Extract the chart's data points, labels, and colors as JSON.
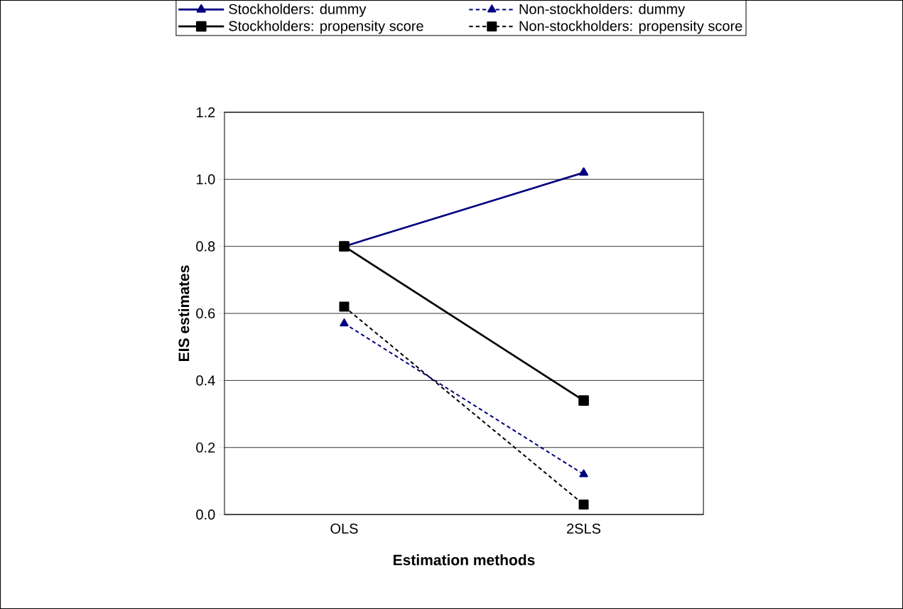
{
  "chart_data": {
    "type": "line",
    "xlabel": "Estimation methods",
    "ylabel": "EIS estimates",
    "categories": [
      "OLS",
      "2SLS"
    ],
    "series": [
      {
        "name": "Stockholders: dummy",
        "color": "#000080",
        "values": [
          0.8,
          1.02
        ],
        "marker": "triangle",
        "line_style": "solid"
      },
      {
        "name": "Non-stockholders: dummy",
        "color": "#000080",
        "values": [
          0.57,
          0.12
        ],
        "marker": "triangle",
        "line_style": "dashed"
      },
      {
        "name": "Stockholders: propensity score",
        "color": "#000000",
        "values": [
          0.8,
          0.34
        ],
        "marker": "square",
        "line_style": "solid"
      },
      {
        "name": "Non-stockholders: propensity score",
        "color": "#000000",
        "values": [
          0.62,
          0.03
        ],
        "marker": "square",
        "line_style": "dashed"
      }
    ],
    "ylim": [
      0,
      1.2
    ],
    "yticks": [
      {
        "value": 0,
        "label": "0.0"
      },
      {
        "value": 0.2,
        "label": "0.2"
      },
      {
        "value": 0.4,
        "label": "0.4"
      },
      {
        "value": 0.6,
        "label": "0.6"
      },
      {
        "value": 0.8,
        "label": "0.8"
      },
      {
        "value": 1.0,
        "label": "1.0"
      },
      {
        "value": 1.2,
        "label": "1.2"
      }
    ],
    "grid": "y",
    "legend": "top"
  }
}
